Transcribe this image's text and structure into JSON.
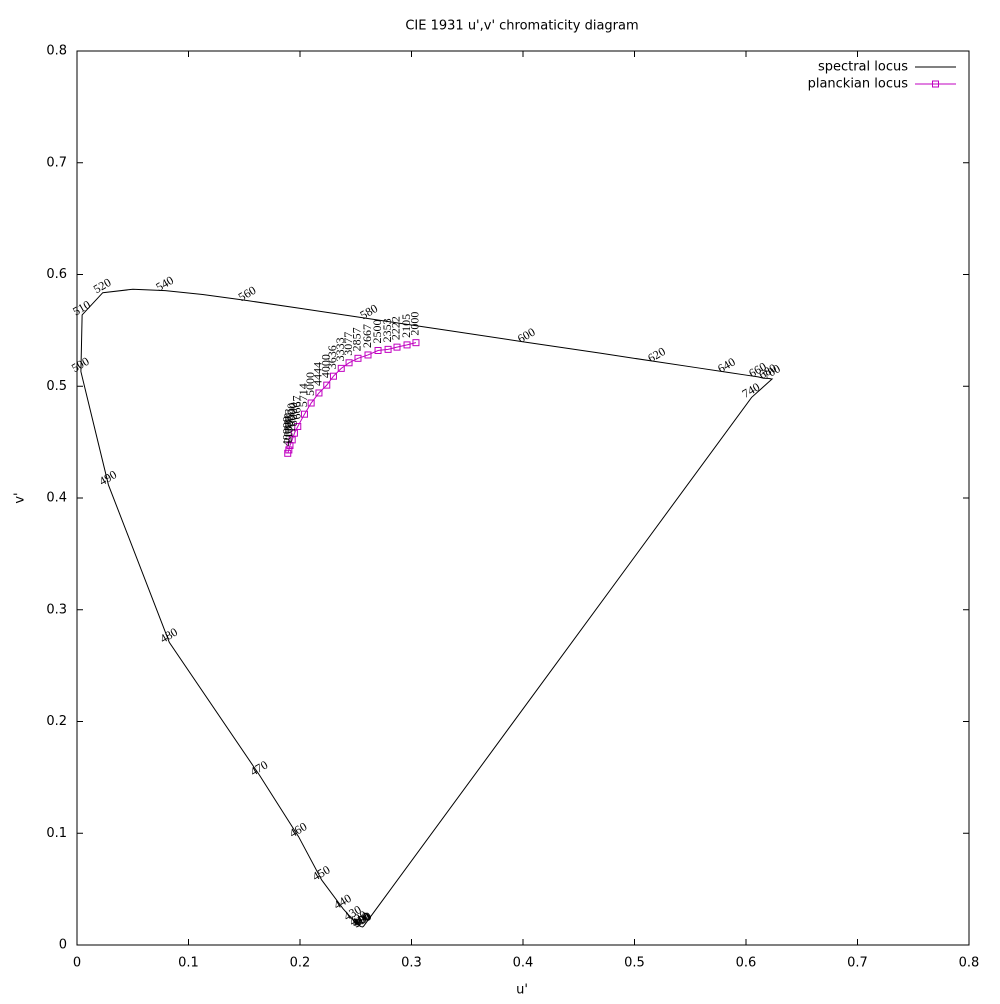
{
  "chart_data": {
    "type": "line",
    "title": "CIE 1931 u',v' chromaticity diagram",
    "x_label": "u'",
    "y_label": "v'",
    "xlim": [
      0,
      0.8
    ],
    "ylim": [
      0,
      0.8
    ],
    "xticks": [
      0,
      0.1,
      0.2,
      0.3,
      0.4,
      0.5,
      0.6,
      0.7,
      0.8
    ],
    "yticks": [
      0,
      0.1,
      0.2,
      0.3,
      0.4,
      0.5,
      0.6,
      0.7,
      0.8
    ],
    "grid": false,
    "legend": "top-right",
    "series": [
      {
        "name": "spectral locus",
        "color": "#000000",
        "marker": "none",
        "x": [
          0.2568,
          0.256,
          0.2555,
          0.2546,
          0.2525,
          0.2476,
          0.2386,
          0.2195,
          0.1988,
          0.1637,
          0.0828,
          0.0282,
          0.0035,
          0.0046,
          0.0231,
          0.0501,
          0.0792,
          0.1127,
          0.1531,
          0.2026,
          0.2623,
          0.3315,
          0.4035,
          0.4692,
          0.5203,
          0.5565,
          0.583,
          0.6005,
          0.6109,
          0.6157,
          0.6199,
          0.6226,
          0.6234,
          0.605,
          0.2568
        ],
        "values": [
          0.0165,
          0.0161,
          0.0163,
          0.0165,
          0.0177,
          0.0224,
          0.0325,
          0.0581,
          0.0968,
          0.1519,
          0.2708,
          0.4117,
          0.5131,
          0.5638,
          0.5837,
          0.5868,
          0.5856,
          0.5821,
          0.5766,
          0.5694,
          0.5604,
          0.5501,
          0.5393,
          0.5296,
          0.5219,
          0.5165,
          0.5125,
          0.5099,
          0.5084,
          0.5072,
          0.507,
          0.5066,
          0.5065,
          0.49,
          0.0165
        ],
        "point_labels": [
          "380",
          "390",
          "400",
          "410",
          "420",
          "430",
          "440",
          "450",
          "460",
          "470",
          "480",
          "490",
          "500",
          "510",
          "520",
          null,
          "540",
          null,
          "560",
          null,
          "580",
          null,
          "600",
          null,
          "620",
          null,
          "640",
          null,
          "660",
          null,
          "680",
          null,
          "700",
          "740",
          null
        ]
      },
      {
        "name": "planckian locus",
        "color": "#c000c0",
        "marker": "square",
        "x": [
          0.304,
          0.296,
          0.287,
          0.279,
          0.27,
          0.261,
          0.252,
          0.244,
          0.237,
          0.23,
          0.224,
          0.217,
          0.21,
          0.204,
          0.198,
          0.195,
          0.193,
          0.191,
          0.19,
          0.189
        ],
        "values": [
          0.539,
          0.537,
          0.535,
          0.533,
          0.532,
          0.528,
          0.525,
          0.521,
          0.516,
          0.509,
          0.501,
          0.494,
          0.485,
          0.475,
          0.464,
          0.458,
          0.452,
          0.447,
          0.443,
          0.44
        ],
        "point_labels": [
          "2000",
          "2105",
          "2222",
          "2353",
          "2500",
          "2667",
          "2857",
          "3077",
          "3333",
          "3636",
          "4000",
          "4444",
          "5000",
          "5714",
          "6667",
          "8000",
          "10000",
          "13333",
          "20000",
          "40000"
        ]
      }
    ]
  }
}
